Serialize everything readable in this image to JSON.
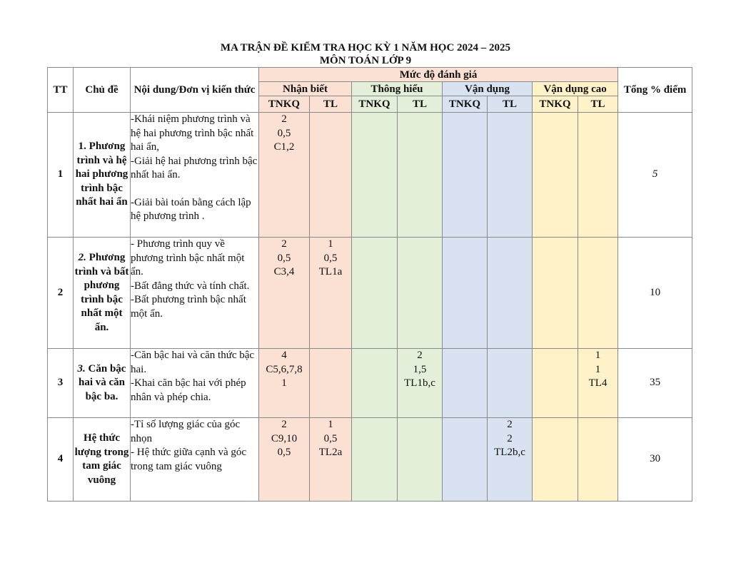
{
  "title_line1": "MA TRẬN ĐỀ KIỂM TRA HỌC KỲ 1 NĂM HỌC 2024 – 2025",
  "title_line2": "MÔN TOÁN LỚP 9",
  "headers": {
    "tt": "TT",
    "chu_de": "Chủ đề",
    "noi_dung": "Nội dung/Đơn vị kiến thức",
    "muc_do": "Mức độ đánh giá",
    "tong": "Tổng % điểm",
    "levels": [
      "Nhận biết",
      "Thông hiểu",
      "Vận dụng",
      "Vận dụng cao"
    ],
    "sub": [
      "TNKQ",
      "TL",
      "TNKQ",
      "TL",
      "TNKQ",
      "TL",
      "TNKQ",
      "TL"
    ]
  },
  "rows": [
    {
      "tt": "1",
      "topic_prefix": "1.",
      "topic": "Phương trình và hệ hai phương trình bậc nhất hai ẩn",
      "content": [
        "-Khái niệm phương trình và hệ hai phương trình bậc nhất hai ẩn,",
        "-Giải hệ hai phương trình bậc nhất hai ẩn.",
        "-Giải bài toán bằng cách lập hệ phương trình ."
      ],
      "cells": [
        [
          "2",
          "0,5",
          "C1,2"
        ],
        [],
        [],
        [],
        [],
        [],
        [],
        []
      ],
      "total": "5"
    },
    {
      "tt": "2",
      "topic_prefix": "2.",
      "topic": "Phương trình và bất phương trình bậc nhất một ẩn.",
      "content": [
        "- Phương trình quy về phương trình bậc nhất một ẩn.",
        "-Bất đẳng thức và tính chất.",
        "-Bất phương trình bậc nhất một ẩn."
      ],
      "cells": [
        [
          "2",
          "0,5",
          "C3,4"
        ],
        [
          "1",
          "0,5",
          "TL1a"
        ],
        [],
        [],
        [],
        [],
        [],
        []
      ],
      "total": "10"
    },
    {
      "tt": "3",
      "topic_prefix": "3.",
      "topic": "Căn bậc hai và căn bậc ba.",
      "content": [
        "-Căn bậc hai và căn thức bậc hai.",
        "-Khai căn bậc hai với phép nhân và phép chia."
      ],
      "cells": [
        [
          "4",
          "C5,6,7,8",
          "1"
        ],
        [],
        [],
        [
          "2",
          "1,5",
          "TL1b,c"
        ],
        [],
        [],
        [],
        [
          "1",
          "1",
          "TL4"
        ]
      ],
      "total": "35"
    },
    {
      "tt": "4",
      "topic_prefix": "",
      "topic": "Hệ thức lượng trong tam giác vuông",
      "content": [
        "-Tỉ số lượng giác của góc nhọn",
        "-        Hệ thức giữa cạnh và góc trong tam giác vuông"
      ],
      "cells": [
        [
          "2",
          "C9,10",
          "0,5"
        ],
        [
          "1",
          "0,5",
          "TL2a"
        ],
        [],
        [],
        [],
        [
          "2",
          "2",
          "TL2b,c"
        ],
        [],
        []
      ],
      "total": "30"
    }
  ],
  "colors": {
    "nhan_biet": "#fbe0d4",
    "thong_hieu": "#e3efd8",
    "van_dung": "#d9e2f1",
    "van_dung_cao": "#fff1c8"
  }
}
